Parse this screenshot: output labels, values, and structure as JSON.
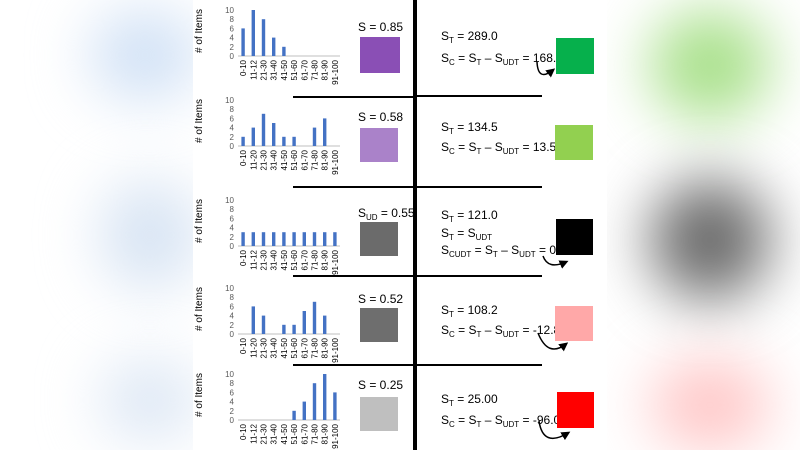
{
  "chart_data": [
    {
      "type": "bar",
      "ylabel": "# of Items",
      "ylim": [
        0,
        10
      ],
      "yticks": [
        0,
        2,
        4,
        6,
        8,
        10
      ],
      "categories": [
        "0-10",
        "11-12",
        "21-30",
        "31-40",
        "41-50",
        "51-60",
        "61-70",
        "71-80",
        "81-90",
        "91-100"
      ],
      "values": [
        6,
        10,
        8,
        4,
        2,
        0,
        0,
        0,
        0,
        0
      ]
    },
    {
      "type": "bar",
      "ylabel": "# of Items",
      "ylim": [
        0,
        10
      ],
      "yticks": [
        0,
        2,
        4,
        6,
        8,
        10
      ],
      "categories": [
        "0-10",
        "11-20",
        "21-30",
        "31-40",
        "41-50",
        "51-60",
        "61-70",
        "71-80",
        "81-90",
        "91-100"
      ],
      "values": [
        2,
        4,
        7,
        5,
        2,
        2,
        0,
        4,
        6,
        0
      ]
    },
    {
      "type": "bar",
      "ylabel": "# of Items",
      "ylim": [
        0,
        10
      ],
      "yticks": [
        0,
        2,
        4,
        6,
        8,
        10
      ],
      "categories": [
        "0-10",
        "11-12",
        "21-30",
        "31-40",
        "41-50",
        "51-60",
        "61-70",
        "71-80",
        "81-90",
        "91-100"
      ],
      "values": [
        3,
        3,
        3,
        3,
        3,
        3,
        3,
        3,
        3,
        3
      ]
    },
    {
      "type": "bar",
      "ylabel": "# of Items",
      "ylim": [
        0,
        10
      ],
      "yticks": [
        0,
        2,
        4,
        6,
        8,
        10
      ],
      "categories": [
        "0-10",
        "11-20",
        "21-30",
        "31-40",
        "41-50",
        "51-60",
        "61-70",
        "71-80",
        "81-90",
        "91-100"
      ],
      "values": [
        0,
        6,
        4,
        0,
        2,
        2,
        5,
        7,
        4,
        0
      ]
    },
    {
      "type": "bar",
      "ylabel": "# of Items",
      "ylim": [
        0,
        10
      ],
      "yticks": [
        0,
        2,
        4,
        6,
        8,
        10
      ],
      "categories": [
        "0-10",
        "11-12",
        "21-30",
        "31-40",
        "41-50",
        "51-60",
        "61-70",
        "71-80",
        "81-90",
        "91-100"
      ],
      "values": [
        0,
        0,
        0,
        0,
        0,
        2,
        4,
        8,
        10,
        6
      ]
    }
  ],
  "rows": [
    {
      "s_label": "S = 0.85",
      "swatch_color": "#8a4fb5",
      "st_line": "289.0",
      "sc_expr": "168.0",
      "result_color": "#06b04c"
    },
    {
      "s_label": "S = 0.58",
      "swatch_color": "#aa82c9",
      "st_line": "134.5",
      "sc_expr": "13.5",
      "result_color": "#92d050"
    },
    {
      "s_label_pre": "S",
      "s_label_sub": "UD",
      "s_label_post": " = 0.55",
      "swatch_color": "#6b6b6b",
      "st_line": "121.0",
      "cudt_expr": "0.0",
      "result_color": "#000000"
    },
    {
      "s_label": "S = 0.52",
      "swatch_color": "#6e6e6e",
      "st_line": "108.2",
      "sc_expr": "-12.8",
      "result_color": "#ffa8a8"
    },
    {
      "s_label": "S = 0.25",
      "swatch_color": "#bfbfbf",
      "st_line": "25.00",
      "sc_expr": "-96.0",
      "result_color": "#ff0000"
    }
  ],
  "colors": {
    "bar": "#4472c4",
    "axis": "#bfbfbf",
    "text": "#595959"
  }
}
